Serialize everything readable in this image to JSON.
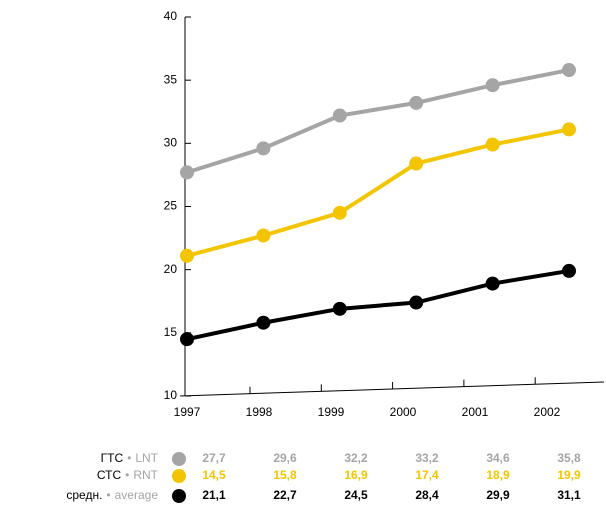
{
  "chart_data": {
    "type": "line",
    "categories": [
      "1997",
      "1998",
      "1999",
      "2000",
      "2001",
      "2002"
    ],
    "separator": "•",
    "series": [
      {
        "name": "ГТС",
        "alias": "LNT",
        "color": "#a5a5a5",
        "line_color": "#a5a5a5",
        "values": [
          27.7,
          29.6,
          32.2,
          33.2,
          34.6,
          35.8
        ],
        "value_labels": [
          "27,7",
          "29,6",
          "32,2",
          "33,2",
          "34,6",
          "35,8"
        ]
      },
      {
        "name": "СТС",
        "alias": "RNT",
        "color": "#f2c500",
        "line_color": "#000000",
        "values": [
          14.5,
          15.8,
          16.9,
          17.4,
          18.9,
          19.9
        ],
        "value_labels": [
          "14,5",
          "15,8",
          "16,9",
          "17,4",
          "18,9",
          "19,9"
        ]
      },
      {
        "name": "средн.",
        "alias": "average",
        "color": "#000000",
        "line_color": "#f2c500",
        "values": [
          21.1,
          22.7,
          24.5,
          28.4,
          29.9,
          31.1
        ],
        "value_labels": [
          "21,1",
          "22,7",
          "24,5",
          "28,4",
          "29,9",
          "31,1"
        ]
      }
    ],
    "ylim": [
      10,
      40
    ],
    "yticks": [
      10,
      15,
      20,
      25,
      30,
      35,
      40
    ]
  }
}
